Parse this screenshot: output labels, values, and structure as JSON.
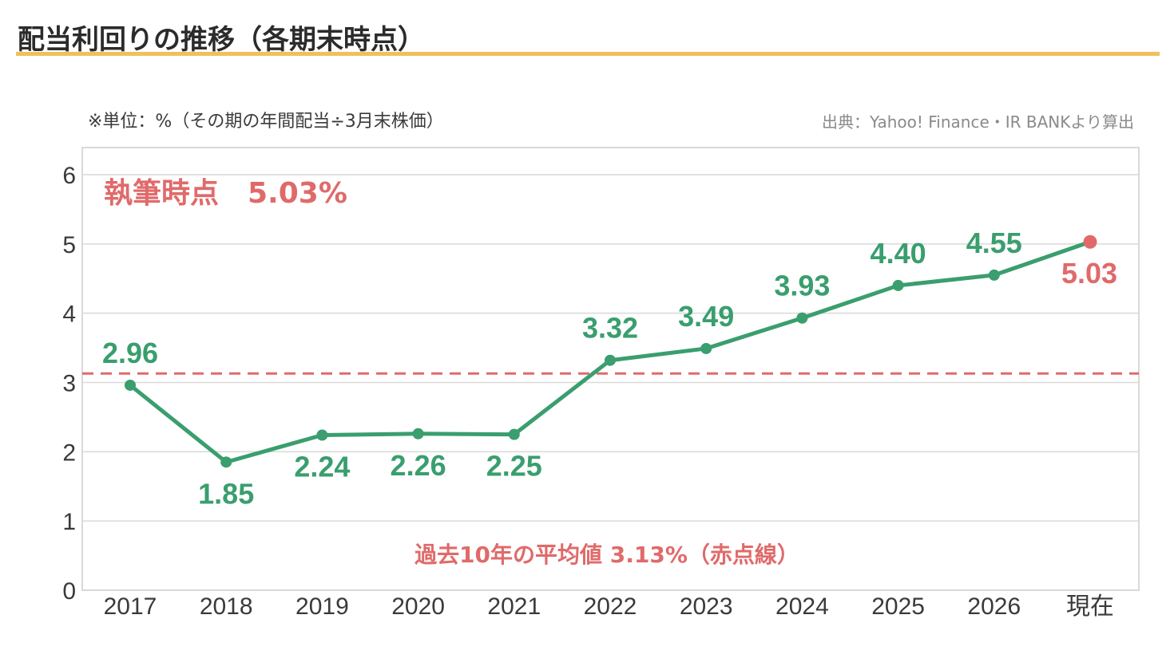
{
  "page": {
    "title": "配当利回りの推移（各期末時点）",
    "unit_note": "※単位：%（その期の年間配当÷3月末株価）",
    "source": "出典：Yahoo! Finance・IR BANKより算出"
  },
  "colors": {
    "series": "#3a9e6e",
    "current": "#e06a6a",
    "average_line": "#e06a6a",
    "title_underline": "#f1c05a",
    "grid": "#d9d9d9"
  },
  "chart_data": {
    "type": "line",
    "title": "配当利回りの推移（各期末時点）",
    "categories": [
      "2017",
      "2018",
      "2019",
      "2020",
      "2021",
      "2022",
      "2023",
      "2024",
      "2025",
      "2026",
      "現在"
    ],
    "values": [
      2.96,
      1.85,
      2.24,
      2.26,
      2.25,
      3.32,
      3.49,
      3.93,
      4.4,
      4.55,
      5.03
    ],
    "value_labels": [
      "2.96",
      "1.85",
      "2.24",
      "2.26",
      "2.25",
      "3.32",
      "3.49",
      "3.93",
      "4.40",
      "4.55",
      "5.03"
    ],
    "label_position": [
      "above",
      "below",
      "below",
      "below",
      "below",
      "above",
      "above",
      "above",
      "above",
      "above",
      "below"
    ],
    "highlight_last": true,
    "ylim": [
      0,
      6
    ],
    "yticks": [
      "0",
      "1",
      "2",
      "3",
      "4",
      "5",
      "6"
    ],
    "grid": true,
    "xlabel": "",
    "ylabel": "",
    "average": 3.13,
    "annotations": {
      "current": "執筆時点　5.03%",
      "average": "過去10年の平均値 3.13%（赤点線）"
    }
  }
}
